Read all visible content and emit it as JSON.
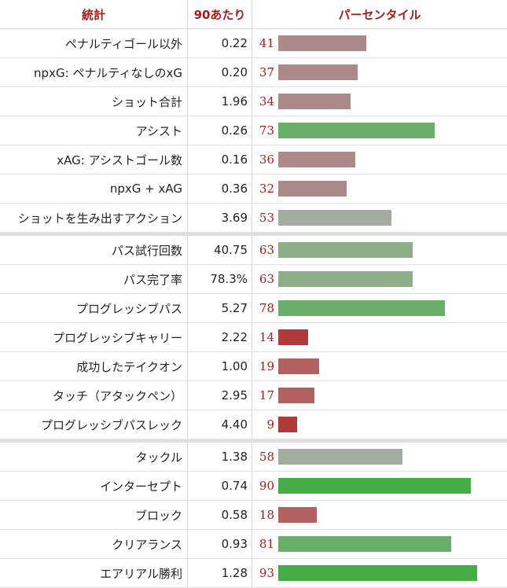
{
  "headers": {
    "stat": "統計",
    "per90": "90あたり",
    "percentile": "パーセンタイル"
  },
  "groups": [
    [
      {
        "label": "ペナルティゴール以外",
        "value": "0.22",
        "percentile": 41
      },
      {
        "label": "npxG: ペナルティなしのxG",
        "value": "0.20",
        "percentile": 37
      },
      {
        "label": "ショット合計",
        "value": "1.96",
        "percentile": 34
      },
      {
        "label": "アシスト",
        "value": "0.26",
        "percentile": 73
      },
      {
        "label": "xAG: アシストゴール数",
        "value": "0.16",
        "percentile": 36
      },
      {
        "label": "npxG + xAG",
        "value": "0.36",
        "percentile": 32
      },
      {
        "label": "ショットを生み出すアクション",
        "value": "3.69",
        "percentile": 53
      }
    ],
    [
      {
        "label": "パス試行回数",
        "value": "40.75",
        "percentile": 63
      },
      {
        "label": "パス完了率",
        "value": "78.3%",
        "percentile": 63
      },
      {
        "label": "プログレッシブパス",
        "value": "5.27",
        "percentile": 78
      },
      {
        "label": "プログレッシブキャリー",
        "value": "2.22",
        "percentile": 14
      },
      {
        "label": "成功したテイクオン",
        "value": "1.00",
        "percentile": 19
      },
      {
        "label": "タッチ（アタックペン）",
        "value": "2.95",
        "percentile": 17
      },
      {
        "label": "プログレッシブパスレック",
        "value": "4.40",
        "percentile": 9
      }
    ],
    [
      {
        "label": "タックル",
        "value": "1.38",
        "percentile": 58
      },
      {
        "label": "インターセプト",
        "value": "0.74",
        "percentile": 90
      },
      {
        "label": "ブロック",
        "value": "0.58",
        "percentile": 18
      },
      {
        "label": "クリアランス",
        "value": "0.93",
        "percentile": 81
      },
      {
        "label": "エアリアル勝利",
        "value": "1.28",
        "percentile": 93
      }
    ]
  ]
}
